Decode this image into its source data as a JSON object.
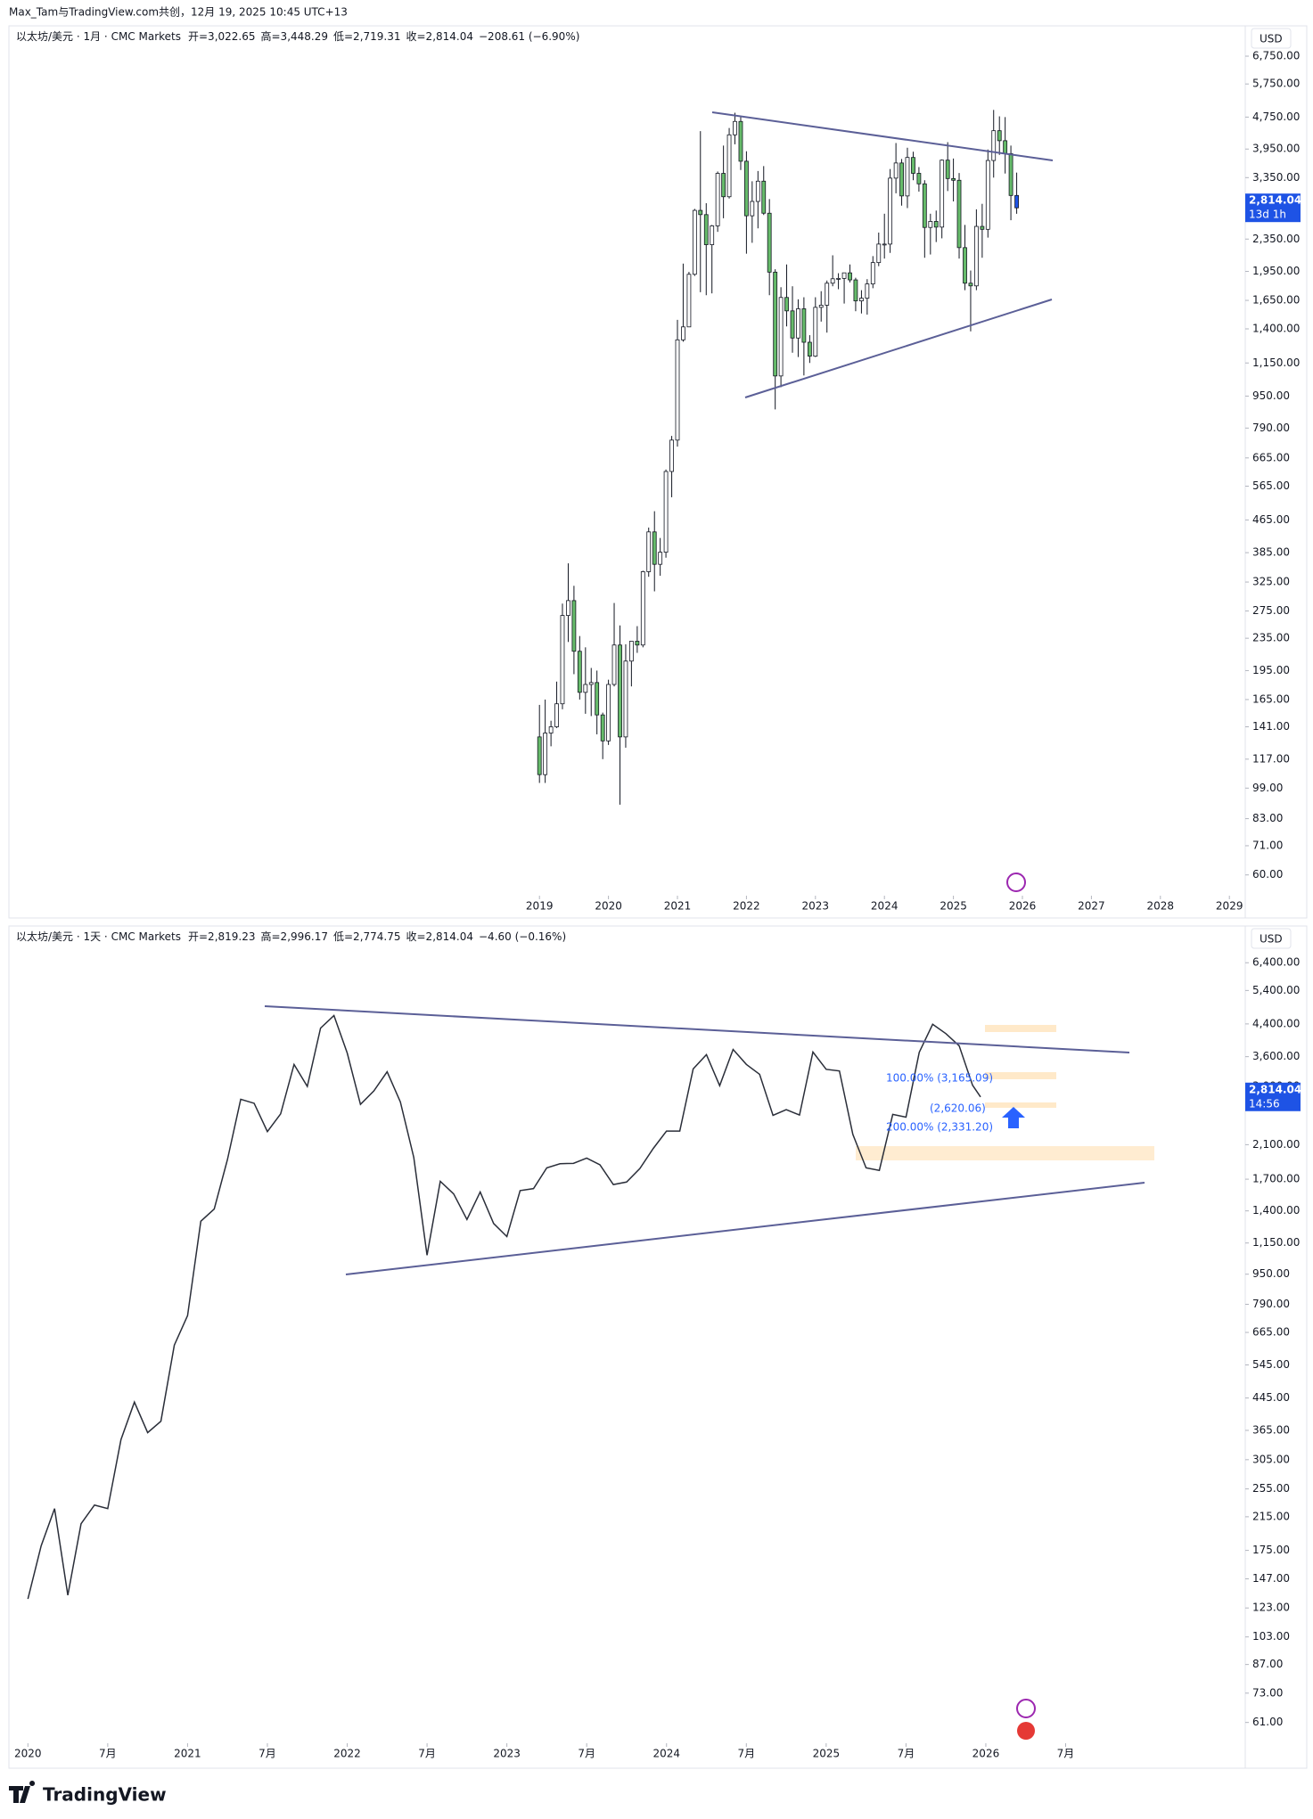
{
  "header": {
    "author_line": "Max_Tam与TradingView.com共创，12月 19, 2025 10:45 UTC+13"
  },
  "chart_data": [
    {
      "type": "candlestick",
      "title": "以太坊/美元 · 1月 · CMC Markets",
      "legend_values": [
        "开=3,022.65",
        "高=3,448.29",
        "低=2,719.31",
        "收=2,814.04",
        "−208.61 (−6.90%)"
      ],
      "currency": "USD",
      "last_price": 2814.04,
      "last_price_label": "2,814.04",
      "countdown": "13d 1h",
      "log_scale": true,
      "xlim": [
        2011.31,
        2029.23
      ],
      "ylim": [
        53.5,
        8040
      ],
      "xticks": [
        2019,
        2020,
        2021,
        2022,
        2023,
        2024,
        2025,
        2026,
        2027,
        2028,
        2029
      ],
      "yticks": [
        {
          "value": 6750,
          "label": "6,750.00"
        },
        {
          "value": 5750,
          "label": "5,750.00"
        },
        {
          "value": 4750,
          "label": "4,750.00"
        },
        {
          "value": 3950,
          "label": "3,950.00"
        },
        {
          "value": 3350,
          "label": "3,350.00"
        },
        {
          "value": 2350,
          "label": "2,350.00"
        },
        {
          "value": 1950,
          "label": "1,950.00"
        },
        {
          "value": 1650,
          "label": "1,650.00"
        },
        {
          "value": 1400,
          "label": "1,400.00"
        },
        {
          "value": 1150,
          "label": "1,150.00"
        },
        {
          "value": 950,
          "label": "950.00"
        },
        {
          "value": 790,
          "label": "790.00"
        },
        {
          "value": 665,
          "label": "665.00"
        },
        {
          "value": 565,
          "label": "565.00"
        },
        {
          "value": 465,
          "label": "465.00"
        },
        {
          "value": 385,
          "label": "385.00"
        },
        {
          "value": 325,
          "label": "325.00"
        },
        {
          "value": 275,
          "label": "275.00"
        },
        {
          "value": 235,
          "label": "235.00"
        },
        {
          "value": 195,
          "label": "195.00"
        },
        {
          "value": 165,
          "label": "165.00"
        },
        {
          "value": 141,
          "label": "141.00"
        },
        {
          "value": 117,
          "label": "117.00"
        },
        {
          "value": 99,
          "label": "99.00"
        },
        {
          "value": 83,
          "label": "83.00"
        },
        {
          "value": 71,
          "label": "71.00"
        },
        {
          "value": 60,
          "label": "60.00"
        }
      ],
      "up_color": "#ffffff",
      "down_color": "#66bb6a",
      "last_color": "#1e53e5",
      "wick_color": "#131722",
      "x": [
        2019,
        2019.083,
        2019.167,
        2019.25,
        2019.333,
        2019.417,
        2019.5,
        2019.583,
        2019.667,
        2019.75,
        2019.833,
        2019.917,
        2020,
        2020.083,
        2020.167,
        2020.25,
        2020.333,
        2020.417,
        2020.5,
        2020.583,
        2020.667,
        2020.75,
        2020.833,
        2020.917,
        2021,
        2021.083,
        2021.167,
        2021.25,
        2021.333,
        2021.417,
        2021.5,
        2021.583,
        2021.667,
        2021.75,
        2021.833,
        2021.917,
        2022,
        2022.083,
        2022.167,
        2022.25,
        2022.333,
        2022.417,
        2022.5,
        2022.583,
        2022.667,
        2022.75,
        2022.833,
        2022.917,
        2023,
        2023.083,
        2023.167,
        2023.25,
        2023.333,
        2023.417,
        2023.5,
        2023.583,
        2023.667,
        2023.75,
        2023.833,
        2023.917,
        2024,
        2024.083,
        2024.167,
        2024.25,
        2024.333,
        2024.417,
        2024.5,
        2024.583,
        2024.667,
        2024.75,
        2024.833,
        2024.917,
        2025,
        2025.083,
        2025.167,
        2025.25,
        2025.333,
        2025.417,
        2025.5,
        2025.583,
        2025.667,
        2025.75,
        2025.833,
        2025.917
      ],
      "open": [
        133,
        107,
        136,
        141,
        161,
        268,
        292,
        218,
        172,
        180,
        182,
        151,
        130,
        180,
        226,
        133,
        206,
        231,
        226,
        345,
        434,
        360,
        386,
        615,
        737,
        1314,
        1416,
        1918,
        2773,
        2706,
        2275,
        2536,
        3433,
        3000,
        4288,
        4632,
        3682,
        2688,
        2920,
        3282,
        2728,
        1942,
        1067,
        1678,
        1553,
        1328,
        1572,
        1296,
        1196,
        1585,
        1605,
        1822,
        1869,
        1873,
        1934,
        1857,
        1645,
        1671,
        1814,
        2052,
        2283,
        2283,
        3340,
        3645,
        3014,
        3763,
        3434,
        3232,
        2513,
        2602,
        2518,
        3705,
        3332,
        3299,
        2237,
        1822,
        1794,
        2528,
        2486,
        3698,
        4391,
        4145,
        3848,
        3022.65
      ],
      "high": [
        160,
        165,
        146,
        183,
        287,
        362,
        318,
        238,
        223,
        198,
        195,
        153,
        185,
        288,
        253,
        227,
        216,
        252,
        347,
        445,
        489,
        419,
        622,
        755,
        1475,
        2040,
        1945,
        2797,
        4380,
        2890,
        2550,
        3470,
        4030,
        4460,
        4870,
        4780,
        3900,
        3280,
        3480,
        3580,
        2960,
        1975,
        1780,
        2030,
        1790,
        1660,
        1680,
        1350,
        1680,
        1740,
        1850,
        2140,
        1930,
        1930,
        2030,
        1880,
        1750,
        1865,
        2130,
        2440,
        2720,
        3520,
        4090,
        3730,
        3980,
        3890,
        3560,
        3300,
        2720,
        2770,
        3720,
        4110,
        3740,
        3440,
        2550,
        1960,
        2790,
        2880,
        3940,
        4950,
        4770,
        4750,
        4030,
        3448.29
      ],
      "low": [
        102,
        102,
        126,
        140,
        156,
        230,
        191,
        165,
        152,
        150,
        135,
        117,
        127,
        178,
        90,
        125,
        178,
        216,
        223,
        335,
        308,
        337,
        374,
        530,
        710,
        1300,
        1430,
        1900,
        1730,
        1700,
        1718,
        2450,
        2650,
        2970,
        4060,
        3500,
        2160,
        2300,
        2500,
        2700,
        1700,
        880,
        1000,
        1420,
        1220,
        1190,
        1070,
        1150,
        1190,
        1460,
        1370,
        1790,
        1760,
        1620,
        1830,
        1550,
        1530,
        1520,
        1770,
        2010,
        2100,
        2170,
        3060,
        2850,
        2810,
        3300,
        3090,
        2110,
        2150,
        2310,
        2360,
        3100,
        2920,
        2100,
        1750,
        1380,
        1750,
        2110,
        2370,
        3350,
        3820,
        3430,
        2620,
        2719.31
      ],
      "close": [
        107,
        136,
        141,
        161,
        268,
        292,
        218,
        172,
        180,
        182,
        151,
        130,
        180,
        226,
        133,
        206,
        231,
        226,
        345,
        434,
        360,
        386,
        615,
        737,
        1314,
        1416,
        1918,
        2773,
        2706,
        2275,
        2536,
        3433,
        3000,
        4288,
        4632,
        3682,
        2688,
        2920,
        3282,
        2728,
        1942,
        1067,
        1678,
        1553,
        1328,
        1572,
        1296,
        1196,
        1585,
        1605,
        1822,
        1869,
        1873,
        1934,
        1857,
        1645,
        1671,
        1814,
        2052,
        2283,
        2283,
        3340,
        3645,
        3014,
        3763,
        3434,
        3232,
        2513,
        2602,
        2518,
        3705,
        3332,
        3299,
        2237,
        1822,
        1794,
        2528,
        2486,
        3698,
        4391,
        4145,
        3848,
        3022,
        2814.04
      ]
    },
    {
      "type": "line",
      "title": "以太坊/美元 · 1天 · CMC Markets",
      "legend_values": [
        "开=2,819.23",
        "高=2,996.17",
        "低=2,774.75",
        "收=2,814.04",
        "−4.60 (−0.16%)"
      ],
      "currency": "USD",
      "last_price": 2814.04,
      "last_price_label": "2,814.04",
      "countdown": "14:56",
      "annotations": [
        "100.00% (3,165.09)",
        "(2,620.06)",
        "200.00% (2,331.20)"
      ],
      "log_scale": true,
      "xlim": [
        2019.881,
        2027.625
      ],
      "ylim": [
        54,
        7070
      ],
      "xticks": [
        2020,
        {
          "value": 2020.5,
          "label": "7月"
        },
        2021,
        {
          "value": 2021.5,
          "label": "7月"
        },
        2022,
        {
          "value": 2022.5,
          "label": "7月"
        },
        2023,
        {
          "value": 2023.5,
          "label": "7月"
        },
        2024,
        {
          "value": 2024.5,
          "label": "7月"
        },
        2025,
        {
          "value": 2025.5,
          "label": "7月"
        },
        2026,
        {
          "value": 2026.5,
          "label": "7月"
        }
      ],
      "yticks": [
        {
          "value": 6400,
          "label": "6,400.00"
        },
        {
          "value": 5400,
          "label": "5,400.00"
        },
        {
          "value": 4400,
          "label": "4,400.00"
        },
        {
          "value": 3600,
          "label": "3,600.00"
        },
        {
          "value": 3000,
          "label": "3,000.00"
        },
        {
          "value": 2100,
          "label": "2,100.00"
        },
        {
          "value": 1700,
          "label": "1,700.00"
        },
        {
          "value": 1400,
          "label": "1,400.00"
        },
        {
          "value": 1150,
          "label": "1,150.00"
        },
        {
          "value": 950,
          "label": "950.00"
        },
        {
          "value": 790,
          "label": "790.00"
        },
        {
          "value": 665,
          "label": "665.00"
        },
        {
          "value": 545,
          "label": "545.00"
        },
        {
          "value": 445,
          "label": "445.00"
        },
        {
          "value": 365,
          "label": "365.00"
        },
        {
          "value": 305,
          "label": "305.00"
        },
        {
          "value": 255,
          "label": "255.00"
        },
        {
          "value": 215,
          "label": "215.00"
        },
        {
          "value": 175,
          "label": "175.00"
        },
        {
          "value": 147,
          "label": "147.00"
        },
        {
          "value": 123,
          "label": "123.00"
        },
        {
          "value": 103,
          "label": "103.00"
        },
        {
          "value": 87,
          "label": "87.00"
        },
        {
          "value": 73,
          "label": "73.00"
        },
        {
          "value": 61,
          "label": "61.00"
        }
      ],
      "color": "#2a2e39",
      "x": [
        2020,
        2020.083,
        2020.167,
        2020.25,
        2020.333,
        2020.417,
        2020.5,
        2020.583,
        2020.667,
        2020.75,
        2020.833,
        2020.917,
        2021,
        2021.083,
        2021.167,
        2021.25,
        2021.333,
        2021.417,
        2021.5,
        2021.583,
        2021.667,
        2021.75,
        2021.833,
        2021.917,
        2022,
        2022.083,
        2022.167,
        2022.25,
        2022.333,
        2022.417,
        2022.5,
        2022.583,
        2022.667,
        2022.75,
        2022.833,
        2022.917,
        2023,
        2023.083,
        2023.167,
        2023.25,
        2023.333,
        2023.417,
        2023.5,
        2023.583,
        2023.667,
        2023.75,
        2023.833,
        2023.917,
        2024,
        2024.083,
        2024.167,
        2024.25,
        2024.333,
        2024.417,
        2024.5,
        2024.583,
        2024.667,
        2024.75,
        2024.833,
        2024.917,
        2025,
        2025.083,
        2025.167,
        2025.25,
        2025.333,
        2025.417,
        2025.5,
        2025.583,
        2025.667,
        2025.75,
        2025.833,
        2025.917,
        2025.967
      ],
      "values": [
        130,
        180,
        226,
        133,
        206,
        231,
        226,
        345,
        434,
        360,
        386,
        615,
        737,
        1314,
        1416,
        1918,
        2773,
        2706,
        2275,
        2536,
        3433,
        3000,
        4288,
        4632,
        3682,
        2688,
        2920,
        3282,
        2728,
        1942,
        1067,
        1678,
        1553,
        1328,
        1572,
        1296,
        1196,
        1585,
        1605,
        1822,
        1869,
        1873,
        1934,
        1857,
        1645,
        1671,
        1814,
        2052,
        2283,
        2283,
        3340,
        3645,
        3014,
        3763,
        3434,
        3232,
        2513,
        2602,
        2518,
        3705,
        3332,
        3299,
        2237,
        1822,
        1794,
        2528,
        2486,
        3698,
        4391,
        4145,
        3848,
        3022,
        2814.04
      ]
    }
  ],
  "footer": {
    "brand": "TradingView"
  }
}
